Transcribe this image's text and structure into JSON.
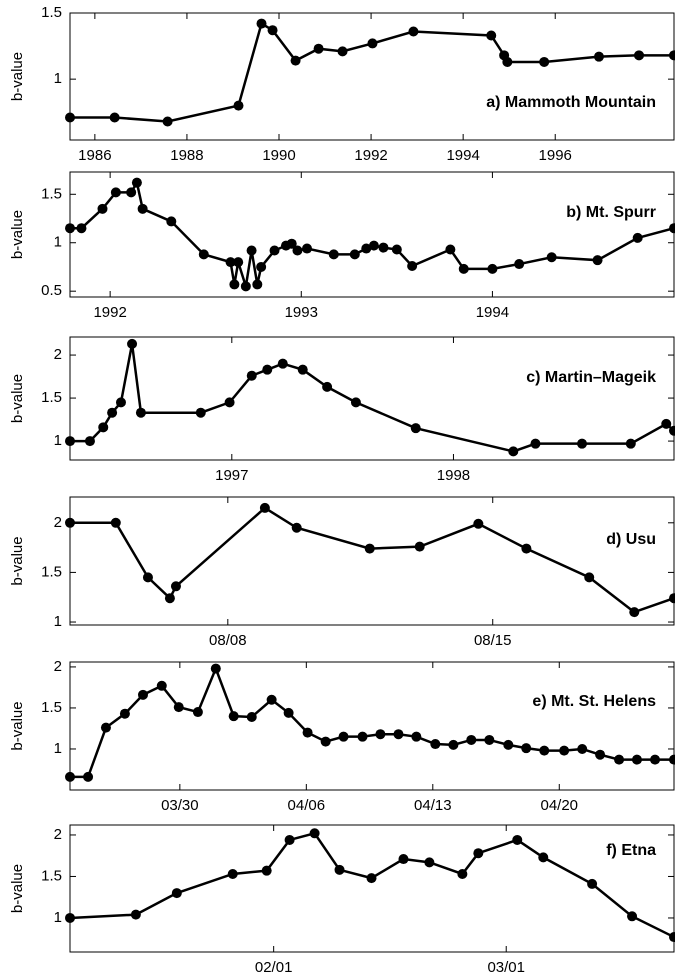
{
  "chart_data": [
    {
      "type": "line",
      "label": "a) Mammoth Mountain",
      "ylabel": "b-value",
      "color": "#000000",
      "x": [
        1985.46,
        1986.43,
        1987.58,
        1989.12,
        1989.62,
        1989.86,
        1990.36,
        1990.86,
        1991.38,
        1992.03,
        1992.92,
        1994.61,
        1994.89,
        1994.96,
        1995.76,
        1996.95,
        1997.82,
        1998.58
      ],
      "values": [
        0.71,
        0.71,
        0.68,
        0.8,
        1.42,
        1.37,
        1.14,
        1.23,
        1.21,
        1.27,
        1.36,
        1.33,
        1.18,
        1.13,
        1.13,
        1.17,
        1.18,
        1.18
      ],
      "xlim": [
        1985.46,
        1998.58
      ],
      "xticks": [
        1986,
        1988,
        1990,
        1992,
        1994,
        1996
      ],
      "ylim": [
        0.54,
        1.5
      ],
      "yticks": [
        1,
        1.5
      ]
    },
    {
      "type": "line",
      "label": "b) Mt. Spurr",
      "ylabel": "b-value",
      "color": "#000000",
      "x": [
        1991.79,
        1991.85,
        1991.96,
        1992.03,
        1992.11,
        1992.14,
        1992.17,
        1992.32,
        1992.49,
        1992.63,
        1992.65,
        1992.67,
        1992.71,
        1992.74,
        1992.77,
        1992.79,
        1992.86,
        1992.92,
        1992.95,
        1992.98,
        1993.03,
        1993.17,
        1993.28,
        1993.34,
        1993.38,
        1993.43,
        1993.5,
        1993.58,
        1993.78,
        1993.85,
        1994.0,
        1994.14,
        1994.31,
        1994.55,
        1994.76,
        1994.95
      ],
      "values": [
        1.15,
        1.15,
        1.35,
        1.52,
        1.52,
        1.62,
        1.35,
        1.22,
        0.88,
        0.8,
        0.57,
        0.8,
        0.55,
        0.92,
        0.57,
        0.75,
        0.92,
        0.97,
        0.99,
        0.92,
        0.94,
        0.88,
        0.88,
        0.94,
        0.97,
        0.95,
        0.93,
        0.76,
        0.93,
        0.73,
        0.73,
        0.78,
        0.85,
        0.82,
        1.05,
        1.15
      ],
      "xlim": [
        1991.79,
        1994.95
      ],
      "xticks": [
        1992,
        1993,
        1994
      ],
      "ylim": [
        0.44,
        1.73
      ],
      "yticks": [
        0.5,
        1,
        1.5
      ]
    },
    {
      "type": "line",
      "label": "c) Martin–Mageik",
      "ylabel": "b-value",
      "color": "#000000",
      "x": [
        1996.27,
        1996.36,
        1996.42,
        1996.46,
        1996.5,
        1996.55,
        1996.59,
        1996.86,
        1996.99,
        1997.09,
        1997.16,
        1997.23,
        1997.32,
        1997.43,
        1997.56,
        1997.83,
        1998.27,
        1998.37,
        1998.58,
        1998.8,
        1998.96,
        1998.995
      ],
      "values": [
        1.0,
        1.0,
        1.16,
        1.33,
        1.45,
        2.13,
        1.33,
        1.33,
        1.45,
        1.76,
        1.83,
        1.9,
        1.83,
        1.63,
        1.45,
        1.15,
        0.88,
        0.97,
        0.97,
        0.97,
        1.2,
        1.12
      ],
      "xlim": [
        1996.27,
        1998.995
      ],
      "xticks": [
        1997,
        1998
      ],
      "ylim": [
        0.78,
        2.21
      ],
      "yticks": [
        1,
        1.5,
        2
      ]
    },
    {
      "type": "line",
      "label": "d) Usu",
      "ylabel": "b-value",
      "color": "#000000",
      "x": [
        3.83,
        5.04,
        5.89,
        6.47,
        6.63,
        8.98,
        9.82,
        11.75,
        13.07,
        14.62,
        15.89,
        17.55,
        18.74,
        19.79
      ],
      "values": [
        2.0,
        2.0,
        1.45,
        1.24,
        1.36,
        2.15,
        1.95,
        1.74,
        1.76,
        1.99,
        1.74,
        1.45,
        1.1,
        1.24
      ],
      "xlim": [
        3.83,
        19.79
      ],
      "xticks": [
        {
          "value": 8,
          "label": "08/08"
        },
        {
          "value": 15,
          "label": "08/15"
        }
      ],
      "ylim": [
        0.97,
        2.26
      ],
      "yticks": [
        1,
        1.5,
        2
      ]
    },
    {
      "type": "line",
      "label": "e) Mt. St. Helens",
      "ylabel": "b-value",
      "color": "#000000",
      "x": [
        23.92,
        24.92,
        25.91,
        26.96,
        27.96,
        29.0,
        29.94,
        31.0,
        31.99,
        32.98,
        33.98,
        35.08,
        36.02,
        37.07,
        38.07,
        39.06,
        40.11,
        41.1,
        42.1,
        43.09,
        44.14,
        45.14,
        46.13,
        47.13,
        48.18,
        49.17,
        50.17,
        51.27,
        52.27,
        53.26,
        54.31,
        55.3,
        56.3,
        57.35
      ],
      "values": [
        0.66,
        0.66,
        1.26,
        1.43,
        1.66,
        1.77,
        1.51,
        1.45,
        1.98,
        1.4,
        1.39,
        1.6,
        1.44,
        1.2,
        1.09,
        1.15,
        1.15,
        1.18,
        1.18,
        1.15,
        1.06,
        1.05,
        1.11,
        1.11,
        1.05,
        1.01,
        0.98,
        0.98,
        1.0,
        0.93,
        0.87,
        0.87,
        0.87,
        0.87
      ],
      "xlim": [
        23.92,
        57.35
      ],
      "xticks": [
        {
          "value": 30,
          "label": "03/30"
        },
        {
          "value": 37,
          "label": "04/06"
        },
        {
          "value": 44,
          "label": "04/13"
        },
        {
          "value": 51,
          "label": "04/20"
        }
      ],
      "ylim": [
        0.5,
        2.06
      ],
      "yticks": [
        1,
        1.5,
        2
      ]
    },
    {
      "type": "line",
      "label": "f) Etna",
      "ylabel": "b-value",
      "color": "#000000",
      "x": [
        7.48,
        15.41,
        20.34,
        27.07,
        31.16,
        33.92,
        36.93,
        39.93,
        43.78,
        47.63,
        50.75,
        54.72,
        56.64,
        61.33,
        64.46,
        70.34,
        75.15,
        80.2
      ],
      "values": [
        1.0,
        1.04,
        1.3,
        1.53,
        1.57,
        1.94,
        2.02,
        1.58,
        1.48,
        1.71,
        1.67,
        1.53,
        1.78,
        1.94,
        1.73,
        1.41,
        1.02,
        0.77
      ],
      "xlim": [
        7.48,
        80.2
      ],
      "xticks": [
        {
          "value": 32,
          "label": "02/01"
        },
        {
          "value": 60,
          "label": "03/01"
        }
      ],
      "ylim": [
        0.59,
        2.12
      ],
      "yticks": [
        1,
        1.5,
        2
      ]
    }
  ]
}
